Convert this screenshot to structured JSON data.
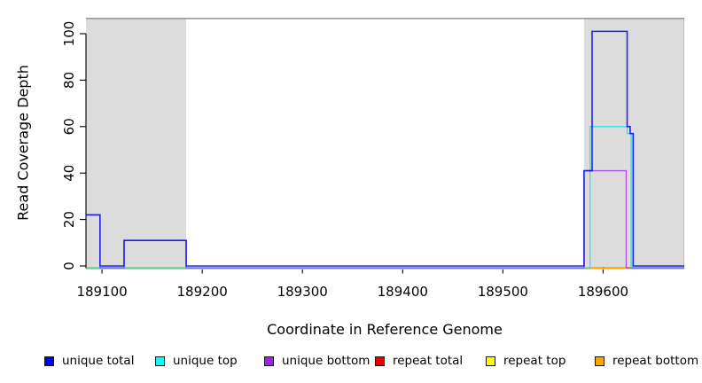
{
  "chart_data": {
    "type": "line",
    "title": "",
    "xlabel": "Coordinate in Reference Genome",
    "ylabel": "Read Coverage Depth",
    "xlim": [
      189084,
      189681
    ],
    "ylim": [
      0,
      106.5
    ],
    "x_ticks": [
      189100,
      189200,
      189300,
      189400,
      189500,
      189600
    ],
    "y_ticks": [
      0,
      20,
      40,
      60,
      80,
      100
    ],
    "grid": false,
    "background_color": "#ffffff",
    "shaded_region_color": "#dcdcdc",
    "top_border_color": "#8a8a8a",
    "shaded_regions": [
      {
        "x0": 189084,
        "x1": 189184
      },
      {
        "x0": 189581,
        "x1": 189681
      }
    ],
    "series": [
      {
        "name": "repeat top",
        "color": "#ffff00",
        "points": [
          [
            189084,
            0
          ],
          [
            189681,
            0
          ]
        ]
      },
      {
        "name": "repeat total",
        "color": "#ee0000",
        "points": [
          [
            189084,
            0
          ],
          [
            189681,
            0
          ]
        ]
      },
      {
        "name": "repeat bottom",
        "color": "#ffa500",
        "points": [
          [
            189084,
            0
          ],
          [
            189681,
            0
          ]
        ]
      },
      {
        "name": "unique top",
        "color": "#00e5ee",
        "points": [
          [
            189084,
            0
          ],
          [
            189587,
            0
          ],
          [
            189587,
            60
          ],
          [
            189624,
            60
          ],
          [
            189624,
            57
          ],
          [
            189628,
            57
          ],
          [
            189628,
            0
          ],
          [
            189681,
            0
          ]
        ]
      },
      {
        "name": "unique bottom",
        "color": "#a020f0",
        "points": [
          [
            189084,
            22
          ],
          [
            189098,
            22
          ],
          [
            189098,
            0
          ],
          [
            189122,
            0
          ],
          [
            189122,
            11
          ],
          [
            189184,
            11
          ],
          [
            189184,
            0
          ],
          [
            189581,
            0
          ],
          [
            189581,
            41
          ],
          [
            189623,
            41
          ],
          [
            189623,
            0
          ],
          [
            189681,
            0
          ]
        ]
      },
      {
        "name": "unique total",
        "color": "#1414f0",
        "points": [
          [
            189084,
            22
          ],
          [
            189098,
            22
          ],
          [
            189098,
            0
          ],
          [
            189122,
            0
          ],
          [
            189122,
            11
          ],
          [
            189184,
            11
          ],
          [
            189184,
            0
          ],
          [
            189581,
            0
          ],
          [
            189581,
            41
          ],
          [
            189589,
            41
          ],
          [
            189589,
            101
          ],
          [
            189624,
            101
          ],
          [
            189624,
            60
          ],
          [
            189627,
            60
          ],
          [
            189627,
            57
          ],
          [
            189630,
            57
          ],
          [
            189630,
            0
          ],
          [
            189681,
            0
          ]
        ]
      }
    ],
    "legend": {
      "position": "bottom",
      "items": [
        {
          "label": "unique total",
          "color": "#0000ee"
        },
        {
          "label": "unique top",
          "color": "#00ffff"
        },
        {
          "label": "unique bottom",
          "color": "#a020f0"
        },
        {
          "label": "repeat total",
          "color": "#ee0000"
        },
        {
          "label": "repeat top",
          "color": "#ffff00"
        },
        {
          "label": "repeat bottom",
          "color": "#ffa500"
        }
      ]
    }
  }
}
